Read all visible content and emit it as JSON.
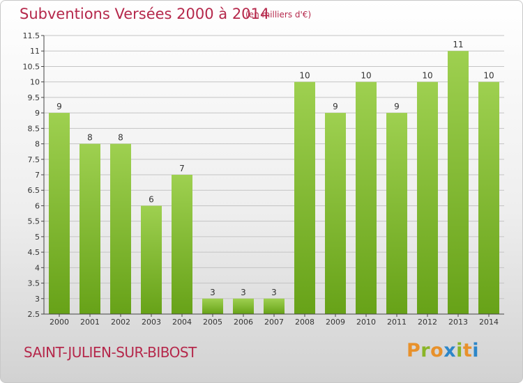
{
  "header": {
    "title": "Subventions Versées 2000 à 2014",
    "subtitle": "(en milliers d'€)"
  },
  "footer": {
    "commune": "SAINT-JULIEN-SUR-BIBOST",
    "logo_text": "Proxiti",
    "logo_colors": [
      "#e8912b",
      "#8ab528",
      "#e8912b",
      "#2c86c8",
      "#8ab528",
      "#e8912b",
      "#2c86c8"
    ]
  },
  "colors": {
    "bar_light": "#9ed050",
    "bar_dark": "#67a218",
    "axis": "#444444",
    "grid": "#c4c4c4",
    "accent": "#b5284b"
  },
  "chart_data": {
    "type": "bar",
    "title": "Subventions Versées 2000 à 2014",
    "subtitle": "(en milliers d'€)",
    "categories": [
      "2000",
      "2001",
      "2002",
      "2003",
      "2004",
      "2005",
      "2006",
      "2007",
      "2008",
      "2009",
      "2010",
      "2011",
      "2012",
      "2013",
      "2014"
    ],
    "values": [
      9,
      8,
      8,
      6,
      7,
      3,
      3,
      3,
      10,
      9,
      10,
      9,
      10,
      11,
      10
    ],
    "ylim": [
      2.5,
      11.5
    ],
    "yticks": [
      "2.5",
      "3",
      "3.5",
      "4",
      "4.5",
      "5",
      "5.5",
      "6",
      "6.5",
      "7",
      "7.5",
      "8",
      "8.5",
      "9",
      "9.5",
      "10",
      "10.5",
      "11",
      "11.5"
    ],
    "grid": true,
    "xlabel": "",
    "ylabel": ""
  }
}
